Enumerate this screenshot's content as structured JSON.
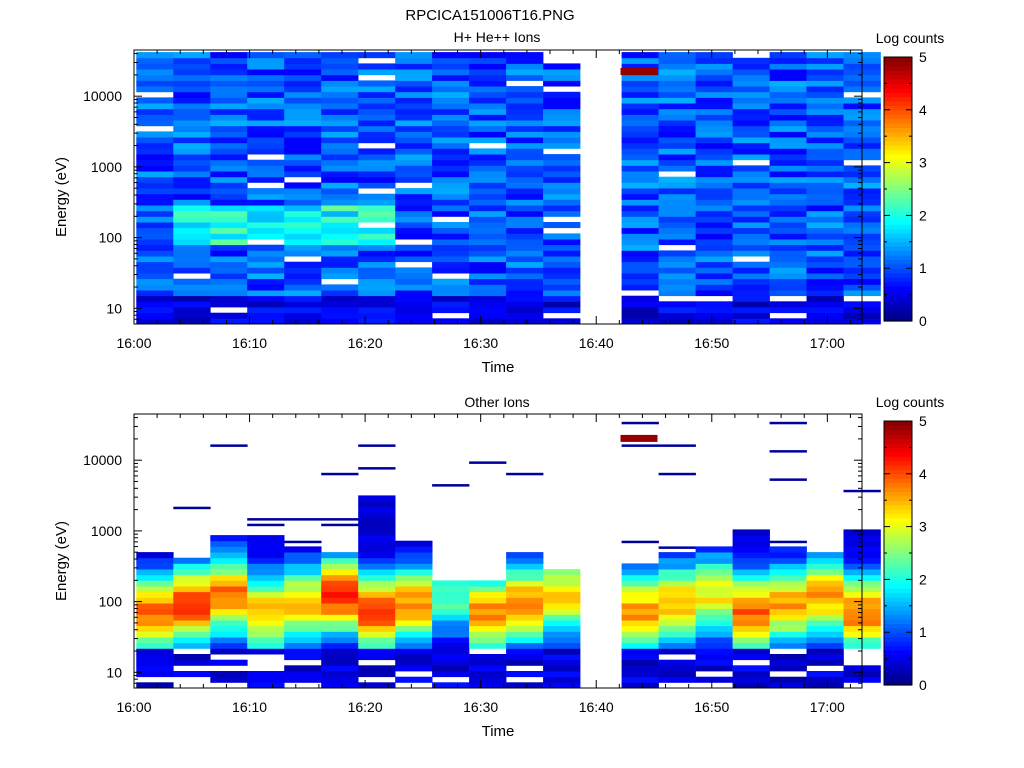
{
  "figure": {
    "title": "RPCICA151006T16.PNG"
  },
  "chart_data": [
    {
      "type": "heatmap",
      "title": "H+ He++ Ions",
      "xlabel": "Time",
      "ylabel": "Energy (eV)",
      "x_tick_labels": [
        "16:00",
        "16:10",
        "16:20",
        "16:30",
        "16:40",
        "16:50",
        "17:00"
      ],
      "y_tick_labels": [
        "10",
        "100",
        "1000",
        "10000"
      ],
      "x_range_minutes": [
        0,
        63
      ],
      "y_range": [
        6,
        45000
      ],
      "y_scale": "log",
      "colorbar": {
        "label": "Log counts",
        "ticks": [
          "0",
          "1",
          "2",
          "3",
          "4",
          "5"
        ],
        "range": [
          0,
          5
        ],
        "colormap": "jet"
      },
      "time_columns_minutes": [
        0.2,
        3.4,
        6.6,
        9.8,
        13,
        16.2,
        19.4,
        22.6,
        25.8,
        29,
        32.2,
        35.4,
        42.2,
        45.4,
        48.6,
        51.8,
        55,
        58.2,
        61.4
      ],
      "data_gap_minutes": [
        39,
        42
      ],
      "energy_bins": 48,
      "features": [
        {
          "time_min": 43.7,
          "energy_ev": 22000,
          "log_counts": 4.9
        }
      ],
      "summary": "Broad background of about 0.6-1.5 log counts across all energies, enhanced to about 1.8-2.3 near 100-200 eV between 16:03 and 16:20, white (no data) gap from 16:39 to 16:42"
    },
    {
      "type": "heatmap",
      "title": "Other Ions",
      "xlabel": "Time",
      "ylabel": "Energy (eV)",
      "x_tick_labels": [
        "16:00",
        "16:10",
        "16:20",
        "16:30",
        "16:40",
        "16:50",
        "17:00"
      ],
      "y_tick_labels": [
        "10",
        "100",
        "1000",
        "10000"
      ],
      "x_range_minutes": [
        0,
        63
      ],
      "y_range": [
        6,
        45000
      ],
      "y_scale": "log",
      "colorbar": {
        "label": "Log counts",
        "ticks": [
          "0",
          "1",
          "2",
          "3",
          "4",
          "5"
        ],
        "range": [
          0,
          5
        ],
        "colormap": "jet"
      },
      "time_columns_minutes": [
        0.2,
        3.4,
        6.6,
        9.8,
        13,
        16.2,
        19.4,
        22.6,
        25.8,
        29,
        32.2,
        35.4,
        42.2,
        45.4,
        48.6,
        51.8,
        55,
        58.2,
        61.4
      ],
      "data_gap_minutes": [
        39,
        42
      ],
      "energy_bins": 48,
      "features": [
        {
          "time_min": 43.7,
          "energy_ev": 20000,
          "log_counts": 4.9
        }
      ],
      "column_tops_ev": [
        500,
        430,
        900,
        900,
        600,
        550,
        2900,
        670,
        200,
        200,
        530,
        300,
        330,
        540,
        580,
        980,
        600,
        520,
        1100
      ],
      "column_peaks_log_counts": [
        3.6,
        3.9,
        3.6,
        3.2,
        3.1,
        4.0,
        3.8,
        3.4,
        2.0,
        3.4,
        3.5,
        3.0,
        3.4,
        3.3,
        2.9,
        3.7,
        3.3,
        3.3,
        3.6
      ],
      "summary": "Main signal between about 25 and 500 eV with peaks of 3-4 log counts near 40-150 eV, sparse single-bin counts at higher energies up to about 40000 eV"
    }
  ]
}
